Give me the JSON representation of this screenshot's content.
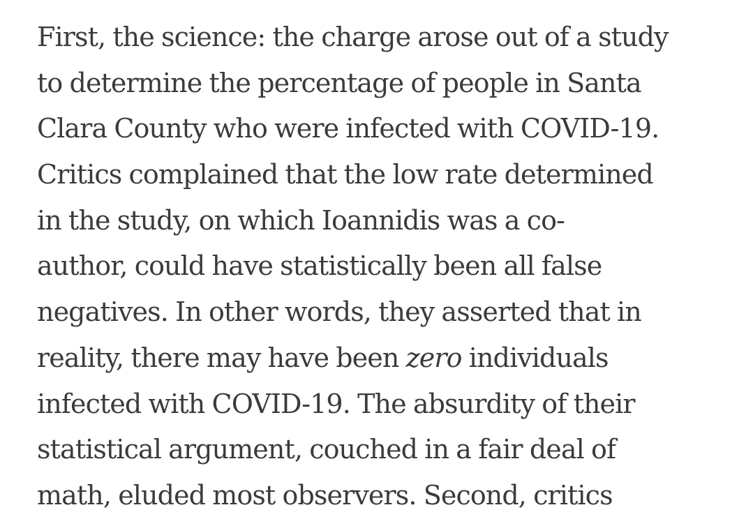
{
  "article": {
    "lines": [
      "First, the science: the charge arose out of a study",
      "to determine the percentage of people in Santa",
      "Clara County who were infected with COVID-19.",
      "Critics complained that the low rate determined",
      "in the study, on which Ioannidis was a co-",
      "author, could have statistically been all false",
      "negatives. In other words, they asserted that in",
      {
        "before": "reality, there may have been ",
        "emphasis": "zero",
        "after": " individuals"
      },
      "infected with COVID-19. The absurdity of their",
      "statistical argument, couched in a fair deal of",
      "math, eluded most observers. Second, critics"
    ]
  }
}
